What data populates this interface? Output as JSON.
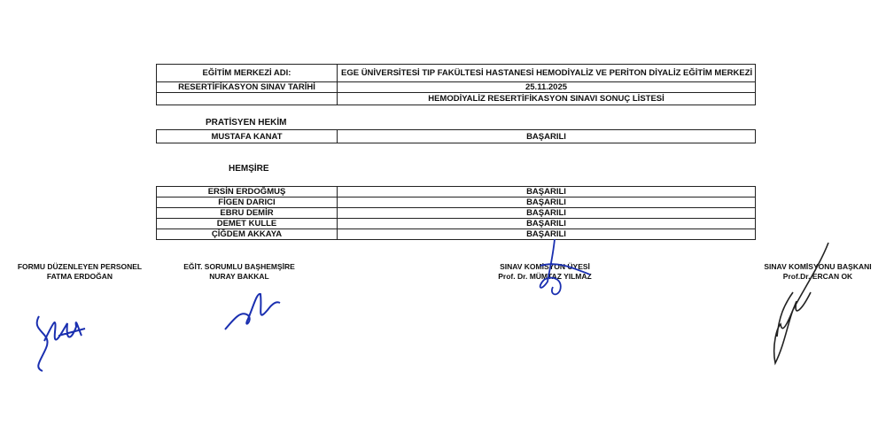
{
  "header": {
    "center_label": "EĞİTİM MERKEZİ ADI:",
    "center_value": "EGE ÜNİVERSİTESİ TIP FAKÜLTESİ HASTANESİ HEMODİYALİZ VE PERİTON DİYALİZ EĞİTİM MERKEZİ",
    "date_label": "RESERTİFİKASYON SINAV TARİHİ",
    "date_value": "25.11.2025",
    "list_title": "HEMODİYALİZ RESERTİFİKASYON SINAVI SONUÇ LİSTESİ"
  },
  "sections": [
    {
      "title": "PRATİSYEN HEKİM",
      "rows": [
        {
          "name": "MUSTAFA KANAT",
          "result": "BAŞARILI"
        }
      ]
    },
    {
      "title": "HEMŞİRE",
      "rows": [
        {
          "name": "ERSİN ERDOĞMUŞ",
          "result": "BAŞARILI"
        },
        {
          "name": "FİGEN DARICI",
          "result": "BAŞARILI"
        },
        {
          "name": "EBRU DEMİR",
          "result": "BAŞARILI"
        },
        {
          "name": "DEMET KULLE",
          "result": "BAŞARILI"
        },
        {
          "name": "ÇİĞDEM AKKAYA",
          "result": "BAŞARILI"
        }
      ]
    }
  ],
  "signatures": [
    {
      "role": "FORMU DÜZENLEYEN PERSONEL",
      "name": "FATMA ERDOĞAN"
    },
    {
      "role": "EĞİT. SORUMLU BAŞHEMŞİRE",
      "name": "NURAY BAKKAL"
    },
    {
      "role": "SINAV KOMİSYON ÜYESİ",
      "name": "Prof. Dr. MÜMTAZ YILMAZ"
    },
    {
      "role": "SINAV KOMİSYONU BAŞKANI",
      "name": "Prof.Dr. ERCAN OK"
    }
  ],
  "colors": {
    "ink": "#1a2fb0",
    "text": "#111111"
  }
}
